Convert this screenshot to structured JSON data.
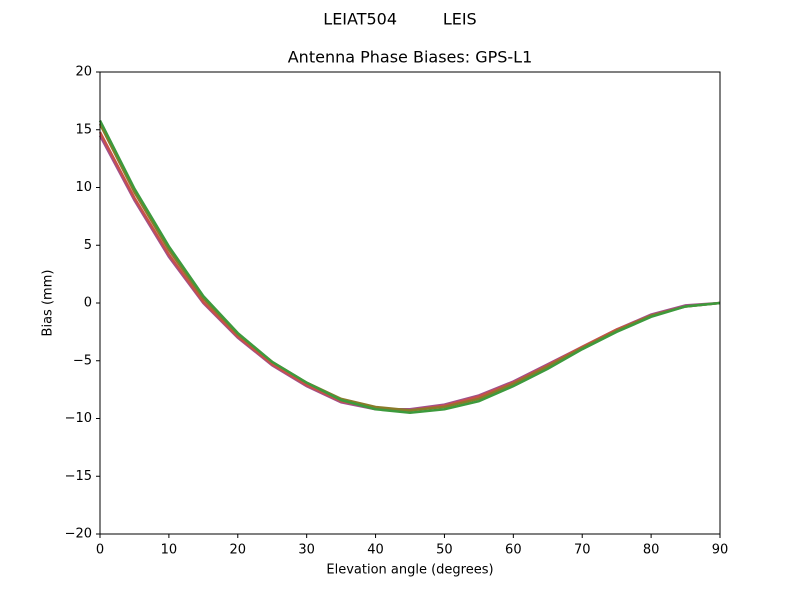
{
  "chart_data": {
    "type": "line",
    "suptitle": "LEIAT504         LEIS",
    "title": "Antenna Phase Biases: GPS-L1",
    "x_label": "Elevation angle (degrees)",
    "y_label": "Bias (mm)",
    "x": [
      0,
      5,
      10,
      15,
      20,
      25,
      30,
      35,
      40,
      45,
      50,
      55,
      60,
      65,
      70,
      75,
      80,
      85,
      90
    ],
    "xlim": [
      0,
      90
    ],
    "xticks": [
      0,
      10,
      20,
      30,
      40,
      50,
      60,
      70,
      80,
      90
    ],
    "ylim": [
      -20,
      20
    ],
    "yticks": [
      {
        "value": -20,
        "label": "−20"
      },
      {
        "value": -15,
        "label": "−15"
      },
      {
        "value": -10,
        "label": "−10"
      },
      {
        "value": -5,
        "label": "−5"
      },
      0,
      5,
      10,
      15,
      20
    ],
    "series": [
      {
        "color": "#a0508c",
        "values": [
          14.5,
          8.9,
          4.0,
          0.0,
          -3.0,
          -5.4,
          -7.2,
          -8.6,
          -9.2,
          -9.2,
          -8.8,
          -8.0,
          -6.8,
          -5.3,
          -3.8,
          -2.3,
          -1.0,
          -0.2,
          0
        ]
      },
      {
        "color": "#c8504a",
        "values": [
          14.8,
          9.1,
          4.2,
          0.1,
          -2.9,
          -5.3,
          -7.1,
          -8.5,
          -9.1,
          -9.3,
          -8.9,
          -8.1,
          -6.9,
          -5.4,
          -3.8,
          -2.3,
          -1.1,
          -0.3,
          0
        ]
      },
      {
        "color": "#8a7a2a",
        "values": [
          15.5,
          9.6,
          4.6,
          0.4,
          -2.7,
          -5.1,
          -6.9,
          -8.3,
          -9.0,
          -9.3,
          -9.0,
          -8.3,
          -7.0,
          -5.5,
          -3.9,
          -2.4,
          -1.1,
          -0.3,
          0
        ]
      },
      {
        "color": "#3d9a3d",
        "values": [
          15.8,
          9.9,
          4.9,
          0.6,
          -2.6,
          -5.1,
          -6.9,
          -8.4,
          -9.2,
          -9.5,
          -9.2,
          -8.5,
          -7.2,
          -5.7,
          -4.0,
          -2.5,
          -1.2,
          -0.3,
          0
        ]
      }
    ]
  }
}
